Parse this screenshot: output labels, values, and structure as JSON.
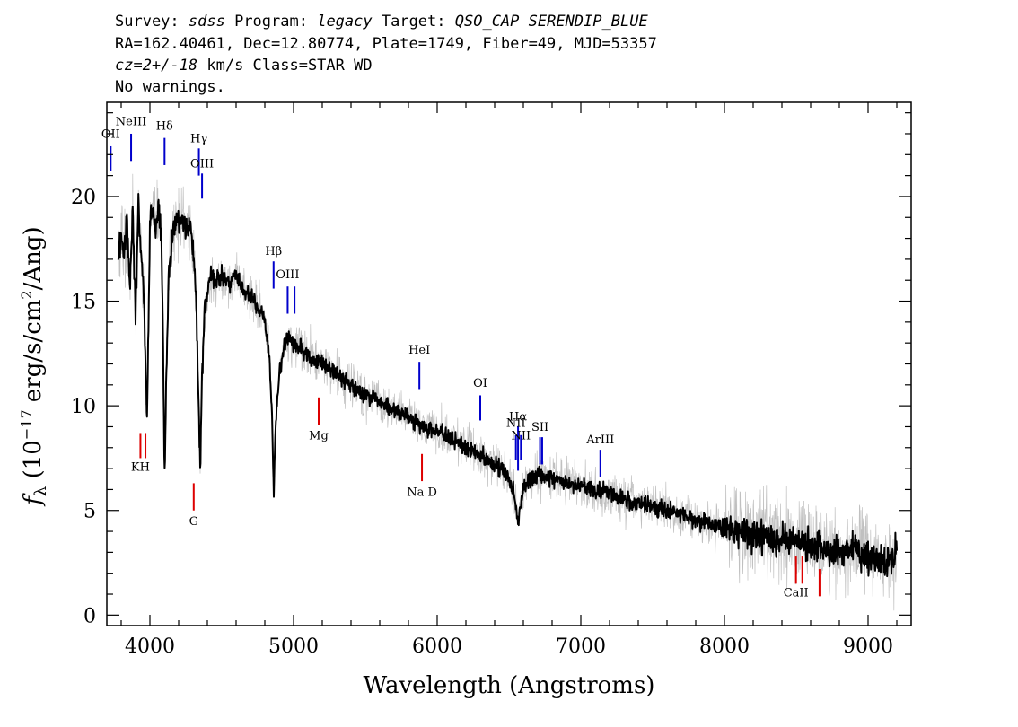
{
  "header": {
    "line1": [
      {
        "text": "Survey: ",
        "italic": false
      },
      {
        "text": "sdss",
        "italic": true
      },
      {
        "text": " Program: ",
        "italic": false
      },
      {
        "text": "legacy",
        "italic": true
      },
      {
        "text": " Target: ",
        "italic": false
      },
      {
        "text": "QSO_CAP SERENDIP_BLUE",
        "italic": true
      }
    ],
    "line2": "RA=162.40461, Dec=12.80774, Plate=1749, Fiber=49, MJD=53357",
    "line3": [
      {
        "text": "cz=2+/-18",
        "italic": true
      },
      {
        "text": " km/s Class=STAR WD",
        "italic": false
      }
    ],
    "line4": "No warnings."
  },
  "chart_data": {
    "type": "line",
    "xlabel": "Wavelength (Angstroms)",
    "ylabel": {
      "main": "f",
      "sub": "λ",
      "rest": " (10",
      "sup1": "−17",
      "rest2": " erg/s/cm",
      "sup2": "2",
      "rest3": "/Ang)"
    },
    "xlim": [
      3700,
      9300
    ],
    "ylim": [
      -0.5,
      24.5
    ],
    "x_ticks": [
      4000,
      5000,
      6000,
      7000,
      8000,
      9000
    ],
    "x_minor_step": 200,
    "y_ticks": [
      0,
      5,
      10,
      15,
      20
    ],
    "y_minor_step": 1,
    "grid": false,
    "legend": "none",
    "series": [
      {
        "role": "flux_error_envelope",
        "color": "#c0c0c0",
        "width": 0.7
      },
      {
        "role": "flux",
        "color": "#000000",
        "width": 2.0,
        "x": [
          3780,
          3800,
          3820,
          3840,
          3860,
          3880,
          3900,
          3920,
          3940,
          3960,
          3970,
          3980,
          3990,
          4000,
          4020,
          4040,
          4060,
          4080,
          4090,
          4100,
          4105,
          4110,
          4130,
          4160,
          4190,
          4220,
          4250,
          4280,
          4300,
          4320,
          4340,
          4350,
          4360,
          4380,
          4420,
          4460,
          4500,
          4550,
          4600,
          4650,
          4700,
          4750,
          4800,
          4830,
          4850,
          4862,
          4875,
          4900,
          4930,
          4960,
          5000,
          5050,
          5100,
          5200,
          5300,
          5400,
          5500,
          5600,
          5700,
          5800,
          5900,
          6000,
          6100,
          6200,
          6300,
          6400,
          6450,
          6500,
          6530,
          6550,
          6563,
          6575,
          6600,
          6650,
          6700,
          6750,
          6800,
          6900,
          7000,
          7100,
          7200,
          7300,
          7400,
          7500,
          7600,
          7700,
          7800,
          7900,
          8000,
          8100,
          8200,
          8300,
          8400,
          8500,
          8600,
          8700,
          8800,
          8900,
          9000,
          9100,
          9180,
          9200
        ],
        "y": [
          17.5,
          18.0,
          17.0,
          19.0,
          15.5,
          19.5,
          14.0,
          19.8,
          17.0,
          15.0,
          11.5,
          9.5,
          14.0,
          18.5,
          19.5,
          18.5,
          19.3,
          18.0,
          14.0,
          8.0,
          7.2,
          10.0,
          16.0,
          18.5,
          18.8,
          19.0,
          18.5,
          18.6,
          17.5,
          15.5,
          10.0,
          7.0,
          10.5,
          14.5,
          16.2,
          16.0,
          16.2,
          15.8,
          16.3,
          15.5,
          15.2,
          14.8,
          14.2,
          12.5,
          9.5,
          5.8,
          9.0,
          11.5,
          12.8,
          13.2,
          13.0,
          12.8,
          12.4,
          12.0,
          11.5,
          11.0,
          10.5,
          10.2,
          9.8,
          9.5,
          9.0,
          8.8,
          8.5,
          8.0,
          7.6,
          7.2,
          7.0,
          6.5,
          6.0,
          5.2,
          4.2,
          5.0,
          6.0,
          6.5,
          6.8,
          6.6,
          6.6,
          6.3,
          6.2,
          5.9,
          5.8,
          5.5,
          5.3,
          5.2,
          5.0,
          4.8,
          4.6,
          4.3,
          4.2,
          4.0,
          3.9,
          3.7,
          3.6,
          3.5,
          3.4,
          3.1,
          3.0,
          3.2,
          2.8,
          2.6,
          2.6,
          3.5
        ]
      }
    ],
    "emission_lines": [
      {
        "label": "OII",
        "wave": 3727,
        "y0": 21.2,
        "y1": 22.4,
        "label_y": 22.8
      },
      {
        "label": "NeIII",
        "wave": 3869,
        "y0": 21.7,
        "y1": 23.0,
        "label_y": 23.4
      },
      {
        "label": "Hδ",
        "wave": 4102,
        "y0": 21.5,
        "y1": 22.8,
        "label_y": 23.2
      },
      {
        "label": "Hγ",
        "wave": 4341,
        "y0": 21.0,
        "y1": 22.3,
        "label_y": 22.6
      },
      {
        "label": "OIII",
        "wave": 4363,
        "y0": 19.9,
        "y1": 21.1,
        "label_y": 21.4
      },
      {
        "label": "Hβ",
        "wave": 4861,
        "y0": 15.6,
        "y1": 16.9,
        "label_y": 17.2
      },
      {
        "label": "OIII",
        "wave": 4959,
        "y0": 14.4,
        "y1": 15.7,
        "label_y": 16.1
      },
      {
        "label": "OIII",
        "wave": 5007,
        "y0": 14.4,
        "y1": 15.7,
        "label_y": null
      },
      {
        "label": "HeI",
        "wave": 5876,
        "y0": 10.8,
        "y1": 12.1,
        "label_y": 12.5
      },
      {
        "label": "OI",
        "wave": 6300,
        "y0": 9.3,
        "y1": 10.5,
        "label_y": 10.9
      },
      {
        "label": "NII",
        "wave": 6548,
        "y0": 7.4,
        "y1": 8.6,
        "label_y": 9.0
      },
      {
        "label": "Hα",
        "wave": 6563,
        "y0": 6.9,
        "y1": 9.0,
        "label_y": 9.3
      },
      {
        "label": "NII",
        "wave": 6583,
        "y0": 7.4,
        "y1": 8.6,
        "label_y": 8.4
      },
      {
        "label": "SII",
        "wave": 6716,
        "y0": 7.2,
        "y1": 8.5,
        "label_y": 8.8
      },
      {
        "label": "SII",
        "wave": 6731,
        "y0": 7.2,
        "y1": 8.5,
        "label_y": null
      },
      {
        "label": "ArIII",
        "wave": 7136,
        "y0": 6.6,
        "y1": 7.9,
        "label_y": 8.2
      }
    ],
    "absorption_lines": [
      {
        "label": "KH",
        "wave": 3934,
        "y0": 7.5,
        "y1": 8.7,
        "label_y": 6.9
      },
      {
        "label": "KH",
        "wave": 3969,
        "y0": 7.5,
        "y1": 8.7,
        "label_y": null
      },
      {
        "label": "G",
        "wave": 4305,
        "y0": 5.0,
        "y1": 6.3,
        "label_y": 4.3
      },
      {
        "label": "Mg",
        "wave": 5175,
        "y0": 9.1,
        "y1": 10.4,
        "label_y": 8.4
      },
      {
        "label": "Na D",
        "wave": 5894,
        "y0": 6.4,
        "y1": 7.7,
        "label_y": 5.7
      },
      {
        "label": "CaII",
        "wave": 8498,
        "y0": 1.5,
        "y1": 2.8,
        "label_y": 0.9
      },
      {
        "label": "CaII",
        "wave": 8542,
        "y0": 1.5,
        "y1": 2.8,
        "label_y": null
      },
      {
        "label": "CaII",
        "wave": 8662,
        "y0": 0.9,
        "y1": 2.2,
        "label_y": null
      }
    ],
    "emission_color": "#0000cc",
    "absorption_color": "#dd0000"
  }
}
